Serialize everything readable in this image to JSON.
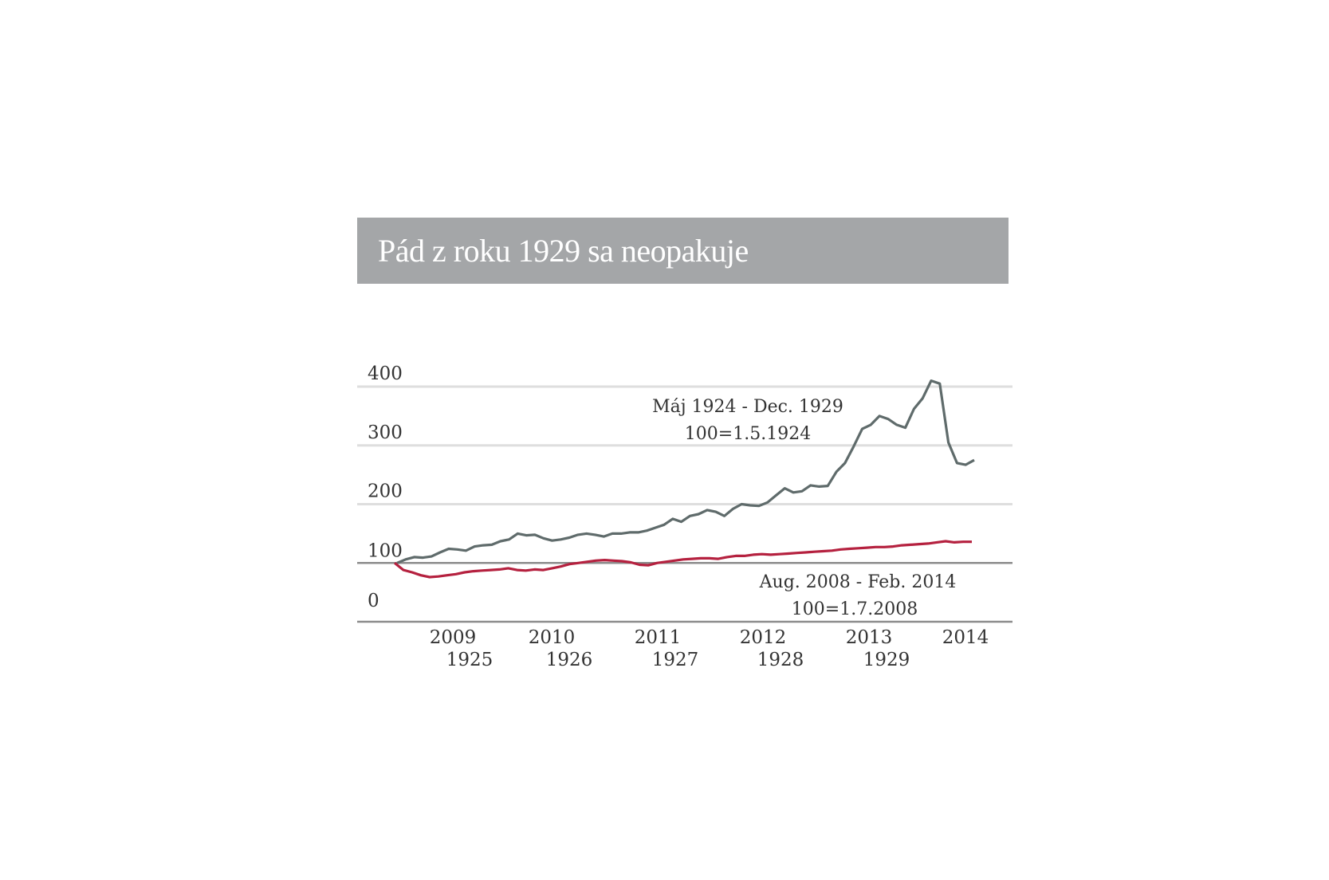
{
  "chart_data": {
    "type": "line",
    "title": "Pád z roku 1929 sa neopakuje",
    "xlabel": "",
    "ylabel": "",
    "ylim": [
      0,
      400
    ],
    "yticks": [
      "0",
      "100",
      "200",
      "300",
      "400"
    ],
    "xtick_labels_top": [
      "2009",
      "2010",
      "2011",
      "2012",
      "2013",
      "2014"
    ],
    "xtick_labels_bottom": [
      "1925",
      "1926",
      "1927",
      "1928",
      "1929"
    ],
    "grid": true,
    "x_unit": "months since start of period",
    "series": [
      {
        "name": "Máj 1924 - Dec. 1929",
        "base": "100=1.5.1924",
        "color": "#5f6b6b",
        "x": [
          0,
          1,
          2,
          3,
          4,
          5,
          6,
          7,
          8,
          9,
          10,
          11,
          12,
          13,
          14,
          15,
          16,
          17,
          18,
          19,
          20,
          21,
          22,
          23,
          24,
          25,
          26,
          27,
          28,
          29,
          30,
          31,
          32,
          33,
          34,
          35,
          36,
          37,
          38,
          39,
          40,
          41,
          42,
          43,
          44,
          45,
          46,
          47,
          48,
          49,
          50,
          51,
          52,
          53,
          54,
          55,
          56,
          57,
          58,
          59,
          60,
          61,
          62,
          63,
          64,
          65,
          66,
          67
        ],
        "values": [
          100,
          106,
          110,
          109,
          111,
          118,
          124,
          123,
          121,
          128,
          130,
          131,
          137,
          140,
          150,
          147,
          148,
          142,
          138,
          140,
          143,
          148,
          150,
          148,
          145,
          150,
          150,
          152,
          152,
          155,
          160,
          165,
          175,
          170,
          180,
          183,
          190,
          187,
          180,
          192,
          200,
          198,
          197,
          203,
          215,
          227,
          220,
          222,
          232,
          230,
          231,
          255,
          270,
          298,
          328,
          335,
          350,
          345,
          335,
          330,
          362,
          380,
          410,
          405,
          305,
          270,
          267,
          275
        ]
      },
      {
        "name": "Aug. 2008 - Feb. 2014",
        "base": "100=1.7.2008",
        "color": "#b5213f",
        "x": [
          0,
          1,
          2,
          3,
          4,
          5,
          6,
          7,
          8,
          9,
          10,
          11,
          12,
          13,
          14,
          15,
          16,
          17,
          18,
          19,
          20,
          21,
          22,
          23,
          24,
          25,
          26,
          27,
          28,
          29,
          30,
          31,
          32,
          33,
          34,
          35,
          36,
          37,
          38,
          39,
          40,
          41,
          42,
          43,
          44,
          45,
          46,
          47,
          48,
          49,
          50,
          51,
          52,
          53,
          54,
          55,
          56,
          57,
          58,
          59,
          60,
          61,
          62,
          63,
          64,
          65,
          66
        ],
        "values": [
          100,
          88,
          84,
          79,
          76,
          77,
          79,
          81,
          84,
          86,
          87,
          88,
          89,
          91,
          88,
          87,
          89,
          88,
          91,
          94,
          98,
          100,
          102,
          104,
          105,
          104,
          103,
          101,
          97,
          96,
          100,
          102,
          104,
          106,
          107,
          108,
          108,
          107,
          110,
          112,
          112,
          114,
          115,
          114,
          115,
          116,
          117,
          118,
          119,
          120,
          121,
          123,
          124,
          125,
          126,
          127,
          127,
          128,
          130,
          131,
          132,
          133,
          135,
          137,
          135,
          136,
          136
        ]
      }
    ]
  }
}
